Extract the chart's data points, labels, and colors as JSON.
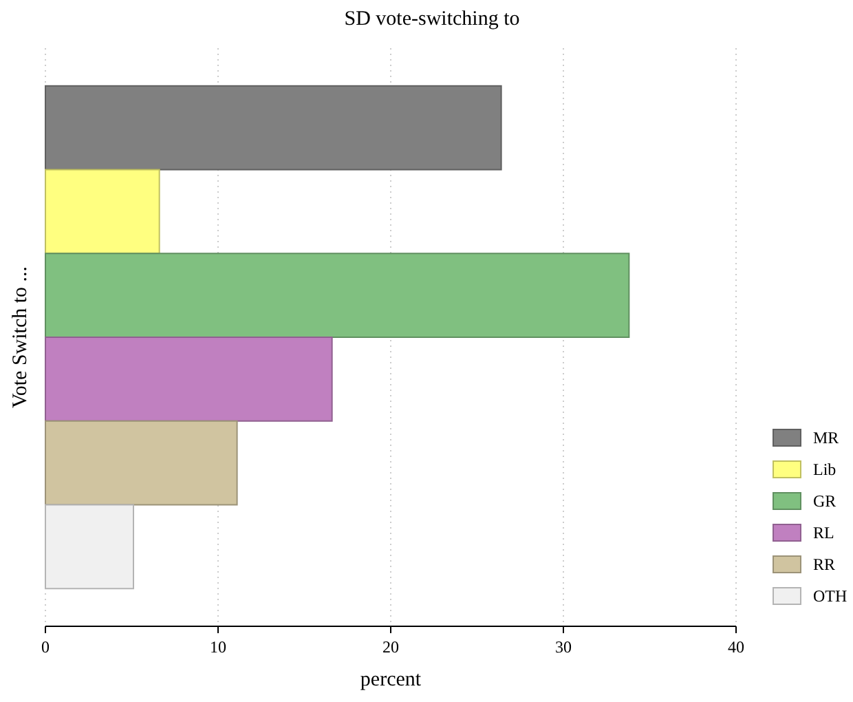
{
  "chart_data": {
    "type": "bar",
    "orientation": "horizontal",
    "title": "SD vote-switching to",
    "xlabel": "percent",
    "ylabel": "Vote Switch to ...",
    "categories": [
      null,
      null,
      null,
      null,
      null,
      null
    ],
    "series": [
      {
        "name": "MR",
        "color": "#808080",
        "values": [
          26.4,
          null,
          null,
          null,
          null,
          null
        ]
      },
      {
        "name": "Lib",
        "color": "#ffff80",
        "values": [
          null,
          6.6,
          null,
          null,
          null,
          null
        ]
      },
      {
        "name": "GR",
        "color": "#80c080",
        "values": [
          null,
          null,
          33.8,
          null,
          null,
          null
        ]
      },
      {
        "name": "RL",
        "color": "#c080c0",
        "values": [
          null,
          null,
          null,
          16.6,
          null,
          null
        ]
      },
      {
        "name": "RR",
        "color": "#d0c4a0",
        "values": [
          null,
          null,
          null,
          null,
          11.1,
          null
        ]
      },
      {
        "name": "OTH",
        "color": "#f0f0f0",
        "values": [
          null,
          null,
          null,
          null,
          null,
          5.1
        ]
      }
    ],
    "xlim": [
      0,
      40
    ],
    "xticks": [
      0,
      10,
      20,
      30,
      40
    ],
    "grid": "x",
    "legend": "right"
  }
}
